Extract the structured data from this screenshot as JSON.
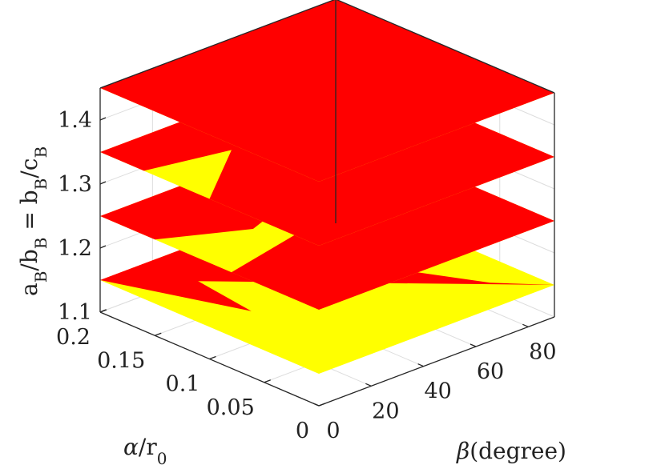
{
  "chart_data": {
    "type": "3d-surface",
    "view": "isometric",
    "grid": true,
    "box": true,
    "colors": {
      "high": "#ff0000",
      "low": "#ffff00",
      "box": "#262626",
      "grid": "#dddddd"
    },
    "x_axis": {
      "label_symbol": "β",
      "label_text": "(degree)",
      "range": [
        0,
        90
      ],
      "ticks": [
        0,
        20,
        40,
        60,
        80
      ],
      "tick_labels": [
        "0",
        "20",
        "40",
        "60",
        "80"
      ]
    },
    "y_axis": {
      "label_symbol": "α",
      "label_text": "/r",
      "label_sub": "0",
      "range": [
        0,
        0.2
      ],
      "ticks": [
        0,
        0.05,
        0.1,
        0.15,
        0.2
      ],
      "tick_labels": [
        "0",
        "0.05",
        "0.1",
        "0.15",
        "0.2"
      ]
    },
    "z_axis": {
      "label_parts": [
        {
          "text": "a"
        },
        {
          "text": "B",
          "sub": true
        },
        {
          "text": "/b"
        },
        {
          "text": "B",
          "sub": true
        },
        {
          "text": " = b"
        },
        {
          "text": "B",
          "sub": true
        },
        {
          "text": "/c"
        },
        {
          "text": "B",
          "sub": true
        }
      ],
      "range": [
        1.1,
        1.45
      ],
      "ticks": [
        1.1,
        1.2,
        1.3,
        1.4
      ],
      "tick_labels": [
        "1.1",
        "1.2",
        "1.3",
        "1.4"
      ]
    },
    "slices": [
      {
        "z": 1.15,
        "red": [
          [
            [
              0,
              0.2
            ],
            [
              90,
              0.2
            ],
            [
              90,
              0.16
            ],
            [
              70,
              0.15
            ],
            [
              50,
              0.12
            ],
            [
              62,
              0.1
            ],
            [
              78,
              0.03
            ],
            [
              90,
              0
            ]
          ],
          [
            [
              0,
              0.2
            ],
            [
              16,
              0.1
            ],
            [
              22,
              0.2
            ]
          ]
        ]
      },
      {
        "z": 1.25,
        "red": [
          [
            [
              0,
              0.2
            ],
            [
              90,
              0.2
            ],
            [
              90,
              0
            ],
            [
              0,
              0
            ],
            [
              0,
              0.08
            ],
            [
              40,
              0.1
            ],
            [
              75,
              0.16
            ],
            [
              25,
              0.12
            ],
            [
              0,
              0.15
            ]
          ]
        ]
      },
      {
        "z": 1.35,
        "red": [
          [
            [
              0,
              0.2
            ],
            [
              90,
              0.2
            ],
            [
              90,
              0
            ],
            [
              0,
              0
            ],
            [
              0,
              0.1
            ],
            [
              30,
              0.15
            ],
            [
              74,
              0.18
            ],
            [
              40,
              0.14
            ],
            [
              0,
              0.16
            ]
          ]
        ]
      },
      {
        "z": 1.45,
        "red": [
          [
            [
              0,
              0.2
            ],
            [
              90,
              0.2
            ],
            [
              90,
              0
            ],
            [
              0,
              0
            ]
          ]
        ]
      }
    ]
  }
}
